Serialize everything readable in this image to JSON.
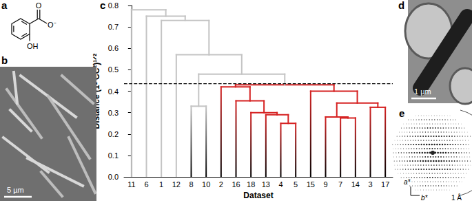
{
  "chart_data": {
    "type": "dendrogram",
    "panel_label": "c",
    "x_label": "Dataset",
    "y_label": "Distance (1- CC²)¹ᐟ²",
    "ylim": [
      0,
      0.8
    ],
    "yticks": [
      {
        "value": 0,
        "label": "0.0"
      },
      0.1,
      0.2,
      0.3,
      0.4,
      0.5,
      0.6,
      0.7,
      0.8
    ],
    "cutoff": {
      "value": 0.435,
      "color": "#000000",
      "line_style": "dashed"
    },
    "tree": {
      "height": 0.78,
      "color": "#c4c4c4",
      "children": [
        {
          "leaf": 11
        },
        {
          "height": 0.75,
          "children": [
            {
              "leaf": 6
            },
            {
              "height": 0.73,
              "children": [
                {
                  "leaf": 1
                },
                {
                  "height": 0.57,
                  "children": [
                    {
                      "leaf": 12
                    },
                    {
                      "height": 0.48,
                      "children": [
                        {
                          "height": 0.33,
                          "children": [
                            {
                              "leaf": 8
                            },
                            {
                              "leaf": 10
                            }
                          ]
                        },
                        {
                          "height": 0.43,
                          "color": "#d62222",
                          "children": [
                            {
                              "height": 0.42,
                              "children": [
                                {
                                  "leaf": 2
                                },
                                {
                                  "height": 0.355,
                                  "children": [
                                    {
                                      "leaf": 16
                                    },
                                    {
                                      "height": 0.3,
                                      "children": [
                                        {
                                          "leaf": 18
                                        },
                                        {
                                          "height": 0.29,
                                          "children": [
                                            {
                                              "leaf": 13
                                            },
                                            {
                                              "height": 0.25,
                                              "children": [
                                                {
                                                  "leaf": 4
                                                },
                                                {
                                                  "leaf": 5
                                                }
                                              ]
                                            }
                                          ]
                                        }
                                      ]
                                    }
                                  ]
                                }
                              ]
                            },
                            {
                              "height": 0.4,
                              "children": [
                                {
                                  "leaf": 15
                                },
                                {
                                  "height": 0.345,
                                  "children": [
                                    {
                                      "height": 0.28,
                                      "children": [
                                        {
                                          "leaf": 9
                                        },
                                        {
                                          "height": 0.275,
                                          "children": [
                                            {
                                              "leaf": 7
                                            },
                                            {
                                              "leaf": 14
                                            }
                                          ]
                                        }
                                      ]
                                    },
                                    {
                                      "height": 0.325,
                                      "children": [
                                        {
                                          "leaf": 3
                                        },
                                        {
                                          "leaf": 17
                                        }
                                      ]
                                    }
                                  ]
                                }
                              ]
                            }
                          ]
                        }
                      ]
                    }
                  ]
                }
              ]
            }
          ]
        }
      ]
    }
  },
  "panels": {
    "a": {
      "label": "a",
      "structure_labels": {
        "carbonyl": "O",
        "carboxylate": "O⁻",
        "hydroxyl": "OH"
      }
    },
    "b": {
      "label": "b",
      "scale_bar": "5 µm"
    },
    "d": {
      "label": "d",
      "scale_bar": "1 µm"
    },
    "e": {
      "label": "e",
      "axis_labels": [
        "a*",
        "b*"
      ],
      "resolution": "1 Å"
    }
  }
}
